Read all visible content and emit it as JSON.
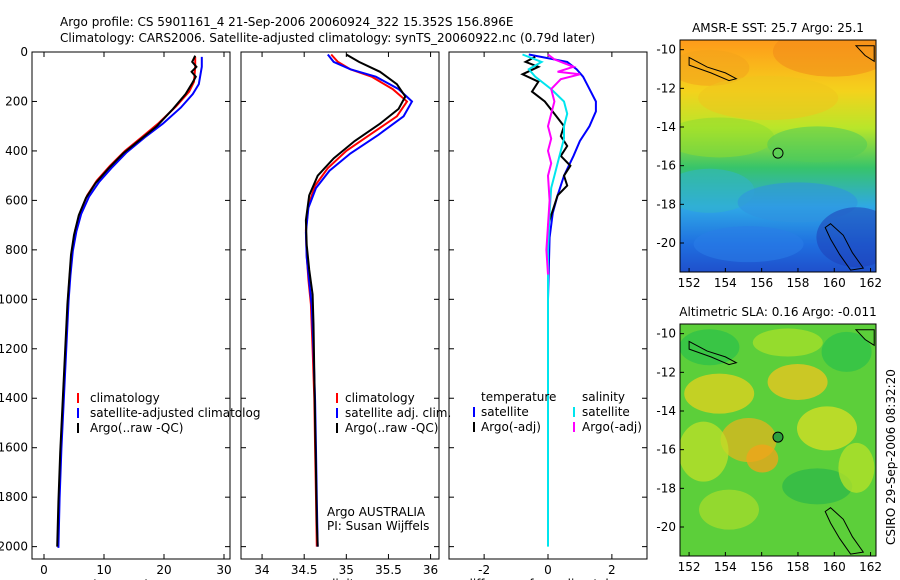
{
  "figure": {
    "title_line1": "Argo profile: CS 5901161_4 21-Sep-2006 20060924_322 15.352S 156.896E",
    "title_line2": "Climatology: CARS2006. Satellite-adjusted climatology: synTS_20060922.nc (0.79d later)",
    "side_label": "CSIRO 29-Sep-2006 08:32:20"
  },
  "colors": {
    "climatology": "#ff0000",
    "satellite": "#0000ff",
    "argo": "#000000",
    "sal_satellite": "#00e5ee",
    "sal_argo": "#ff00ff"
  },
  "chart_data": [
    {
      "type": "line",
      "panel": "temperature",
      "xlabel": "temperature",
      "ylabel": "",
      "xlim": [
        -2,
        31
      ],
      "ylim": [
        2050,
        0
      ],
      "xticks": [
        0,
        10,
        20,
        30
      ],
      "yticks": [
        0,
        200,
        400,
        600,
        800,
        1000,
        1200,
        1400,
        1600,
        1800,
        2000
      ],
      "legend": [
        "climatology",
        "satellite-adjusted climatolog",
        "Argo(..raw -QC)"
      ],
      "series": [
        {
          "name": "climatology",
          "color": "#ff0000",
          "points": [
            [
              25.2,
              20
            ],
            [
              25.2,
              60
            ],
            [
              25.0,
              120
            ],
            [
              24.2,
              160
            ],
            [
              22,
              220
            ],
            [
              19,
              290
            ],
            [
              16.5,
              340
            ],
            [
              13.5,
              400
            ],
            [
              11,
              460
            ],
            [
              8.8,
              520
            ],
            [
              7.2,
              580
            ],
            [
              6.0,
              650
            ],
            [
              5.2,
              720
            ],
            [
              4.7,
              800
            ],
            [
              4.3,
              900
            ],
            [
              4.0,
              1000
            ],
            [
              3.6,
              1200
            ],
            [
              3.2,
              1400
            ],
            [
              2.8,
              1600
            ],
            [
              2.5,
              1800
            ],
            [
              2.3,
              2000
            ]
          ]
        },
        {
          "name": "satellite-adjusted climatolog",
          "color": "#0000ff",
          "points": [
            [
              26.3,
              20
            ],
            [
              26.3,
              60
            ],
            [
              25.8,
              130
            ],
            [
              24.8,
              170
            ],
            [
              22.8,
              225
            ],
            [
              19.8,
              290
            ],
            [
              16.8,
              345
            ],
            [
              13.8,
              405
            ],
            [
              11.4,
              465
            ],
            [
              9.2,
              525
            ],
            [
              7.5,
              585
            ],
            [
              6.2,
              655
            ],
            [
              5.4,
              725
            ],
            [
              4.8,
              805
            ],
            [
              4.4,
              905
            ],
            [
              4.1,
              1005
            ],
            [
              3.7,
              1205
            ],
            [
              3.3,
              1405
            ],
            [
              2.9,
              1605
            ],
            [
              2.6,
              1805
            ],
            [
              2.4,
              2005
            ]
          ]
        },
        {
          "name": "Argo(..raw -QC)",
          "color": "#000000",
          "points": [
            [
              25.2,
              15
            ],
            [
              24.7,
              40
            ],
            [
              25.4,
              60
            ],
            [
              24.6,
              80
            ],
            [
              25.3,
              100
            ],
            [
              24.6,
              130
            ],
            [
              23.6,
              170
            ],
            [
              21.5,
              230
            ],
            [
              18.8,
              300
            ],
            [
              16,
              355
            ],
            [
              13.2,
              410
            ],
            [
              10.8,
              470
            ],
            [
              8.6,
              530
            ],
            [
              7.0,
              590
            ],
            [
              5.8,
              660
            ],
            [
              5.0,
              740
            ],
            [
              4.5,
              820
            ],
            [
              4.2,
              920
            ],
            [
              3.9,
              1020
            ],
            [
              3.5,
              1220
            ],
            [
              3.1,
              1420
            ],
            [
              2.7,
              1620
            ],
            [
              2.4,
              1820
            ],
            [
              2.2,
              2000
            ]
          ]
        }
      ]
    },
    {
      "type": "line",
      "panel": "salinity",
      "xlabel": "salinity",
      "ylabel": "",
      "xlim": [
        33.75,
        36.1
      ],
      "ylim": [
        2050,
        0
      ],
      "xticks": [
        34,
        34.5,
        35,
        35.5,
        36
      ],
      "xticklabels": [
        "34",
        "34.5",
        "35",
        "35.5",
        "36"
      ],
      "legend": [
        "climatology",
        "satellite adj. clim.",
        "Argo(..raw -QC)"
      ],
      "annotations": [
        "Argo AUSTRALIA",
        "PI: Susan Wijffels"
      ],
      "series": [
        {
          "name": "climatology",
          "color": "#ff0000",
          "points": [
            [
              34.82,
              10
            ],
            [
              34.9,
              40
            ],
            [
              35.05,
              70
            ],
            [
              35.3,
              100
            ],
            [
              35.55,
              150
            ],
            [
              35.72,
              200
            ],
            [
              35.6,
              260
            ],
            [
              35.3,
              330
            ],
            [
              35.0,
              400
            ],
            [
              34.78,
              470
            ],
            [
              34.63,
              540
            ],
            [
              34.55,
              620
            ],
            [
              34.52,
              720
            ],
            [
              34.53,
              820
            ],
            [
              34.55,
              920
            ],
            [
              34.58,
              1020
            ],
            [
              34.6,
              1200
            ],
            [
              34.62,
              1400
            ],
            [
              34.63,
              1600
            ],
            [
              34.64,
              1800
            ],
            [
              34.65,
              2000
            ]
          ]
        },
        {
          "name": "satellite adj. clim.",
          "color": "#0000ff",
          "points": [
            [
              34.78,
              10
            ],
            [
              34.85,
              40
            ],
            [
              35.05,
              70
            ],
            [
              35.35,
              100
            ],
            [
              35.62,
              150
            ],
            [
              35.78,
              200
            ],
            [
              35.68,
              260
            ],
            [
              35.38,
              335
            ],
            [
              35.05,
              410
            ],
            [
              34.8,
              480
            ],
            [
              34.64,
              550
            ],
            [
              34.55,
              630
            ],
            [
              34.52,
              730
            ],
            [
              34.53,
              830
            ],
            [
              34.56,
              930
            ],
            [
              34.59,
              1030
            ],
            [
              34.61,
              1210
            ],
            [
              34.63,
              1410
            ],
            [
              34.64,
              1610
            ],
            [
              34.65,
              1810
            ],
            [
              34.66,
              2000
            ]
          ]
        },
        {
          "name": "Argo(..raw -QC)",
          "color": "#000000",
          "points": [
            [
              35.0,
              10
            ],
            [
              35.15,
              40
            ],
            [
              35.4,
              80
            ],
            [
              35.6,
              130
            ],
            [
              35.7,
              180
            ],
            [
              35.62,
              230
            ],
            [
              35.4,
              290
            ],
            [
              35.1,
              360
            ],
            [
              34.85,
              430
            ],
            [
              34.66,
              500
            ],
            [
              34.56,
              580
            ],
            [
              34.52,
              680
            ],
            [
              34.53,
              780
            ],
            [
              34.56,
              880
            ],
            [
              34.6,
              980
            ],
            [
              34.61,
              1100
            ],
            [
              34.62,
              1300
            ],
            [
              34.63,
              1500
            ],
            [
              34.64,
              1700
            ],
            [
              34.65,
              1900
            ],
            [
              34.66,
              2000
            ]
          ]
        }
      ]
    },
    {
      "type": "line",
      "panel": "difference",
      "xlabel": "difference from climatology",
      "ylabel": "",
      "xlim": [
        -3.1,
        3.1
      ],
      "ylim": [
        2050,
        0
      ],
      "xticks": [
        -2,
        0,
        2
      ],
      "legend_left_title": "temperature",
      "legend_right_title": "salinity",
      "legend_left": [
        "satellite",
        "Argo(-adj)"
      ],
      "legend_right": [
        "satellite",
        "Argo(-adj)"
      ],
      "series": [
        {
          "name": "temperature satellite",
          "color": "#0000ff",
          "points": [
            [
              -0.6,
              10
            ],
            [
              0.6,
              40
            ],
            [
              0.9,
              70
            ],
            [
              1.1,
              100
            ],
            [
              1.3,
              150
            ],
            [
              1.5,
              200
            ],
            [
              1.5,
              240
            ],
            [
              1.3,
              300
            ],
            [
              1.0,
              360
            ],
            [
              0.8,
              420
            ],
            [
              0.5,
              500
            ],
            [
              0.3,
              580
            ],
            [
              0.15,
              650
            ],
            [
              0.05,
              750
            ],
            [
              0.0,
              1000
            ],
            [
              0.0,
              1300
            ]
          ]
        },
        {
          "name": "temperature Argo(-adj)",
          "color": "#000000",
          "points": [
            [
              -0.4,
              20
            ],
            [
              -0.7,
              40
            ],
            [
              -0.3,
              60
            ],
            [
              -0.8,
              90
            ],
            [
              -0.3,
              120
            ],
            [
              -0.5,
              160
            ],
            [
              -0.1,
              200
            ],
            [
              0.2,
              250
            ],
            [
              0.5,
              300
            ],
            [
              0.4,
              340
            ],
            [
              0.6,
              380
            ],
            [
              0.4,
              420
            ],
            [
              0.7,
              460
            ],
            [
              0.5,
              500
            ],
            [
              0.6,
              540
            ],
            [
              0.3,
              580
            ],
            [
              0.2,
              620
            ],
            [
              0.1,
              660
            ],
            [
              0.0,
              700
            ]
          ]
        },
        {
          "name": "salinity satellite",
          "color": "#00e5ee",
          "points": [
            [
              -0.8,
              10
            ],
            [
              -0.2,
              40
            ],
            [
              -0.6,
              70
            ],
            [
              -0.4,
              100
            ],
            [
              0.1,
              150
            ],
            [
              0.5,
              200
            ],
            [
              0.6,
              250
            ],
            [
              0.5,
              300
            ],
            [
              0.5,
              350
            ],
            [
              0.4,
              400
            ],
            [
              0.3,
              450
            ],
            [
              0.2,
              500
            ],
            [
              0.1,
              550
            ],
            [
              0.05,
              650
            ],
            [
              0.0,
              800
            ],
            [
              0.0,
              2000
            ]
          ]
        },
        {
          "name": "salinity Argo(-adj)",
          "color": "#ff00ff",
          "points": [
            [
              0.0,
              10
            ],
            [
              0.2,
              30
            ],
            [
              0.8,
              60
            ],
            [
              0.3,
              80
            ],
            [
              1.0,
              90
            ],
            [
              0.4,
              110
            ],
            [
              0.1,
              150
            ],
            [
              0.2,
              200
            ],
            [
              0.1,
              250
            ],
            [
              0.0,
              300
            ],
            [
              0.1,
              350
            ],
            [
              0.0,
              400
            ],
            [
              0.1,
              450
            ],
            [
              0.0,
              500
            ],
            [
              0.05,
              600
            ],
            [
              0.0,
              700
            ],
            [
              -0.05,
              800
            ],
            [
              0.0,
              900
            ]
          ]
        }
      ]
    },
    {
      "type": "heatmap",
      "panel": "sst-map",
      "title": "AMSR-E SST: 25.7 Argo: 25.1",
      "xlim": [
        151.5,
        162.3
      ],
      "ylim": [
        -21.5,
        -9.5
      ],
      "xticks": [
        152,
        154,
        156,
        158,
        160,
        162
      ],
      "yticks": [
        -10,
        -12,
        -14,
        -16,
        -18,
        -20
      ],
      "marker": {
        "lon": 156.9,
        "lat": -15.35
      }
    },
    {
      "type": "heatmap",
      "panel": "sla-map",
      "title": "Altimetric SLA: 0.16 Argo: -0.011",
      "xlim": [
        151.5,
        162.3
      ],
      "ylim": [
        -21.5,
        -9.5
      ],
      "xticks": [
        152,
        154,
        156,
        158,
        160,
        162
      ],
      "yticks": [
        -10,
        -12,
        -14,
        -16,
        -18,
        -20
      ],
      "marker": {
        "lon": 156.9,
        "lat": -15.35
      }
    }
  ]
}
